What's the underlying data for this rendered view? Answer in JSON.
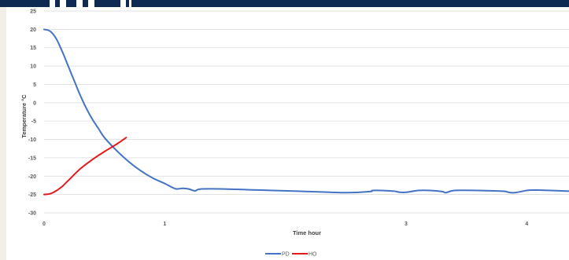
{
  "chart_data": {
    "type": "line",
    "xlabel": "Time hour",
    "ylabel": "Temperature °C",
    "xlim": [
      0,
      4.35
    ],
    "ylim": [
      -30,
      25
    ],
    "x_ticks": [
      "0",
      "1",
      "3",
      "4"
    ],
    "x_tick_values": [
      0,
      1,
      3,
      4
    ],
    "y_ticks": [
      "25",
      "20",
      "15",
      "10",
      "5",
      "0",
      "-5",
      "-10",
      "-15",
      "-20",
      "-25",
      "-30"
    ],
    "y_tick_values": [
      25,
      20,
      15,
      10,
      5,
      0,
      -5,
      -10,
      -15,
      -20,
      -25,
      -30
    ],
    "grid": true,
    "legend_position": "bottom",
    "series": [
      {
        "name": "PD",
        "color": "#4472c4",
        "x": [
          0,
          0.05,
          0.1,
          0.15,
          0.2,
          0.25,
          0.3,
          0.35,
          0.4,
          0.45,
          0.5,
          0.6,
          0.7,
          0.8,
          0.9,
          1.0,
          1.07,
          1.1,
          1.15,
          1.2,
          1.25,
          1.3,
          1.5,
          1.7,
          1.9,
          2.1,
          2.3,
          2.5,
          2.7,
          2.72,
          2.8,
          2.9,
          2.95,
          3.0,
          3.1,
          3.2,
          3.3,
          3.33,
          3.4,
          3.6,
          3.8,
          3.85,
          3.9,
          4.0,
          4.05,
          4.1,
          4.2,
          4.35
        ],
        "y": [
          20,
          19.5,
          17.5,
          14,
          10,
          6,
          2,
          -1.5,
          -4.5,
          -7,
          -9.5,
          -13,
          -16,
          -18.5,
          -20.5,
          -22,
          -23.2,
          -23.5,
          -23.3,
          -23.5,
          -24,
          -23.5,
          -23.5,
          -23.7,
          -23.9,
          -24.1,
          -24.3,
          -24.5,
          -24.2,
          -23.9,
          -23.9,
          -24.1,
          -24.4,
          -24.4,
          -23.9,
          -23.9,
          -24.2,
          -24.5,
          -23.9,
          -23.9,
          -24.1,
          -24.4,
          -24.5,
          -23.9,
          -23.8,
          -23.8,
          -23.9,
          -24.1
        ]
      },
      {
        "name": "HO",
        "color": "#e31a1c",
        "x": [
          0,
          0.05,
          0.1,
          0.15,
          0.2,
          0.3,
          0.4,
          0.5,
          0.6,
          0.68
        ],
        "y": [
          -25,
          -24.8,
          -24,
          -22.8,
          -21.2,
          -18,
          -15.5,
          -13.3,
          -11.3,
          -9.5
        ]
      }
    ]
  }
}
